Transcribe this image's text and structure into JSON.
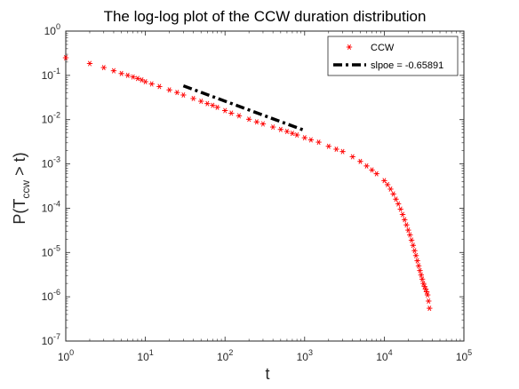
{
  "chart_data": {
    "type": "scatter",
    "title": "The log-log plot of the CCW duration distribution",
    "xlabel": "t",
    "ylabel": {
      "pre": "P(T",
      "sub": "ccw",
      "post": " > t)"
    },
    "x_scale": "log",
    "y_scale": "log",
    "xlim": [
      1,
      100000
    ],
    "ylim": [
      1e-07,
      1
    ],
    "x_ticks": [
      {
        "value": 1,
        "base": "10",
        "exp": "0"
      },
      {
        "value": 10,
        "base": "10",
        "exp": "1"
      },
      {
        "value": 100,
        "base": "10",
        "exp": "2"
      },
      {
        "value": 1000,
        "base": "10",
        "exp": "3"
      },
      {
        "value": 10000,
        "base": "10",
        "exp": "4"
      },
      {
        "value": 100000,
        "base": "10",
        "exp": "5"
      }
    ],
    "y_ticks": [
      {
        "value": 1e-07,
        "base": "10",
        "exp": "-7"
      },
      {
        "value": 1e-06,
        "base": "10",
        "exp": "-6"
      },
      {
        "value": 1e-05,
        "base": "10",
        "exp": "-5"
      },
      {
        "value": 0.0001,
        "base": "10",
        "exp": "-4"
      },
      {
        "value": 0.001,
        "base": "10",
        "exp": "-3"
      },
      {
        "value": 0.01,
        "base": "10",
        "exp": "-2"
      },
      {
        "value": 0.1,
        "base": "10",
        "exp": "-1"
      },
      {
        "value": 1,
        "base": "10",
        "exp": "0"
      }
    ],
    "grid": false,
    "legend_position": "top-right",
    "series": [
      {
        "name": "CCW",
        "kind": "markers",
        "marker": "asterisk",
        "color": "#ff0000",
        "x": [
          1,
          2,
          3,
          4,
          5,
          6,
          7,
          8,
          9,
          10,
          12,
          15,
          20,
          25,
          30,
          40,
          50,
          60,
          70,
          80,
          100,
          120,
          150,
          200,
          250,
          300,
          400,
          500,
          600,
          700,
          800,
          1000,
          1200,
          1500,
          2000,
          2500,
          3000,
          4000,
          5000,
          6000,
          7000,
          8000,
          10000,
          11000,
          12000,
          13000,
          14000,
          15000,
          16000,
          17000,
          18000,
          19000,
          20000,
          21000,
          22000,
          23000,
          24000,
          25000,
          26000,
          27000,
          28000,
          29000,
          30000,
          31000,
          32000,
          33000,
          34000,
          35000,
          36000,
          37000
        ],
        "y": [
          0.25,
          0.185,
          0.15,
          0.127,
          0.11,
          0.1,
          0.092,
          0.085,
          0.079,
          0.072,
          0.064,
          0.056,
          0.047,
          0.041,
          0.036,
          0.03,
          0.026,
          0.023,
          0.021,
          0.019,
          0.016,
          0.014,
          0.0122,
          0.0102,
          0.0089,
          0.008,
          0.0068,
          0.006,
          0.0054,
          0.0049,
          0.0045,
          0.0039,
          0.0035,
          0.0031,
          0.0025,
          0.00215,
          0.0019,
          0.00145,
          0.00114,
          0.0009,
          0.00073,
          0.0006,
          0.00042,
          0.00034,
          0.00027,
          0.00021,
          0.00016,
          0.000125,
          9.5e-05,
          7.2e-05,
          5.5e-05,
          4.2e-05,
          3.2e-05,
          2.5e-05,
          1.9e-05,
          1.45e-05,
          1.1e-05,
          8.5e-06,
          6.5e-06,
          5e-06,
          3.9e-06,
          3.1e-06,
          2.5e-06,
          2e-06,
          1.7e-06,
          1.5e-06,
          1.3e-06,
          1.1e-06,
          8e-07,
          5.5e-07
        ]
      },
      {
        "name": "slpoe = -0.65891",
        "kind": "line",
        "style": "dashdot",
        "color": "#000000",
        "x": [
          30,
          1000
        ],
        "y": [
          0.058,
          0.0057
        ]
      }
    ]
  }
}
